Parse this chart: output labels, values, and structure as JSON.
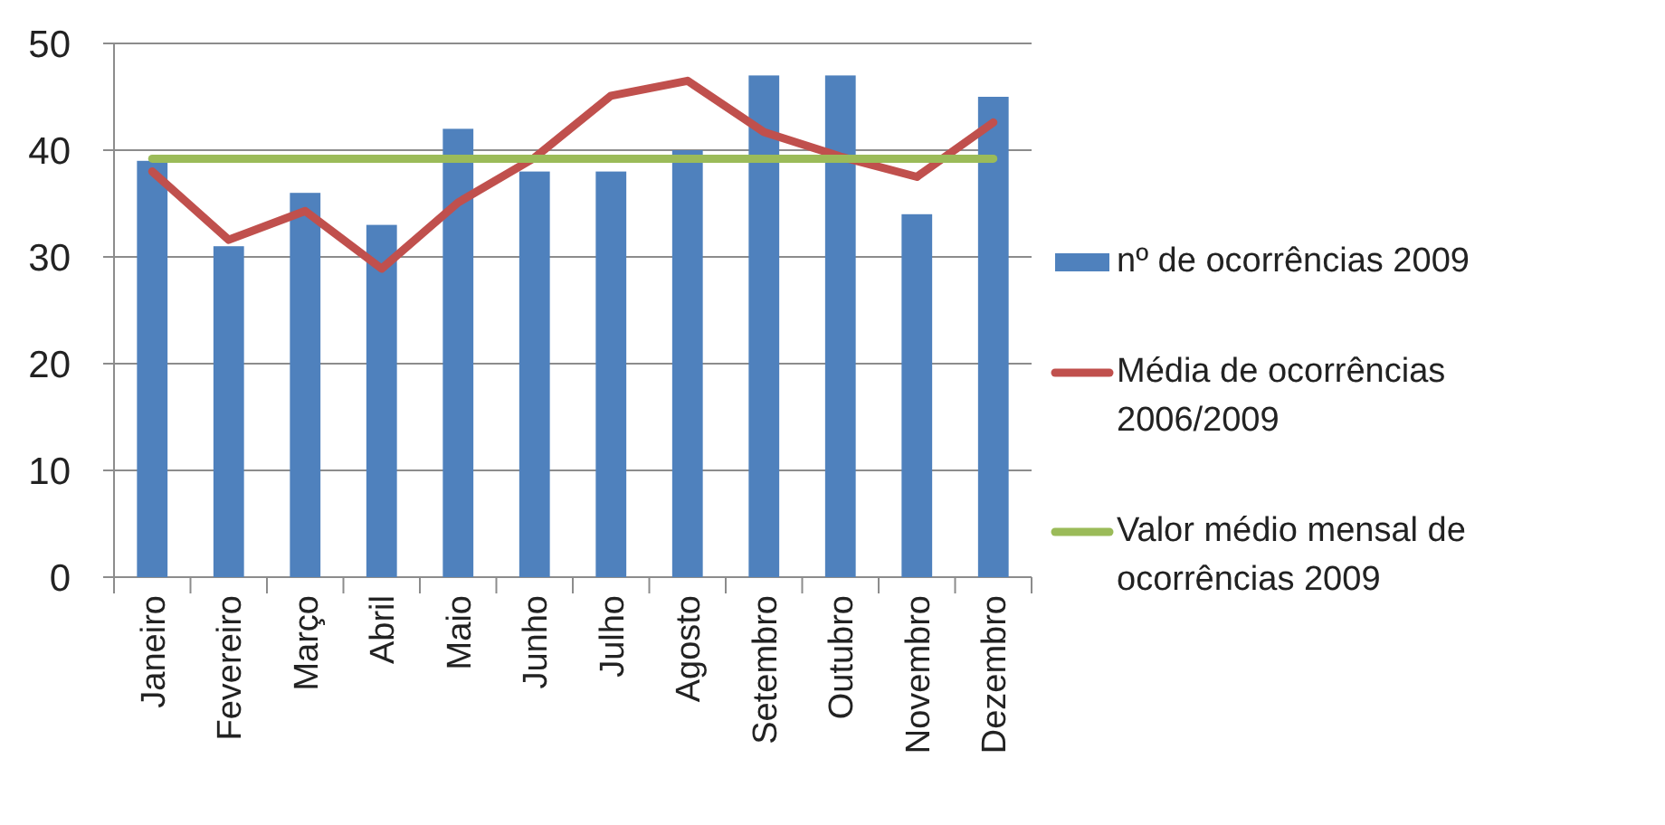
{
  "chart_data": {
    "type": "bar",
    "categories": [
      "Janeiro",
      "Fevereiro",
      "Março",
      "Abril",
      "Maio",
      "Junho",
      "Julho",
      "Agosto",
      "Setembro",
      "Outubro",
      "Novembro",
      "Dezembro"
    ],
    "series": [
      {
        "name": "nº de ocorrências 2009",
        "color": "#4f81bd",
        "values": [
          39,
          31,
          36,
          33,
          42,
          38,
          38,
          40,
          47,
          47,
          34,
          45
        ]
      },
      {
        "name": "Média de ocorrências 2006/2009",
        "type": "line",
        "color": "#c0504d",
        "values": [
          38,
          31.6,
          34.3,
          28.9,
          35.1,
          39.3,
          45.1,
          46.5,
          41.7,
          39.4,
          37.5,
          42.6
        ]
      },
      {
        "name": "Valor médio mensal de ocorrências 2009",
        "type": "line",
        "color": "#9bbb59",
        "values": [
          39.2,
          39.2,
          39.2,
          39.2,
          39.2,
          39.2,
          39.2,
          39.2,
          39.2,
          39.2,
          39.2,
          39.2
        ]
      }
    ],
    "ylim": [
      0,
      50
    ],
    "yticks": [
      0,
      10,
      20,
      30,
      40,
      50
    ],
    "grid": "y",
    "legend": "right",
    "marker": "none",
    "line_style": "solid"
  }
}
